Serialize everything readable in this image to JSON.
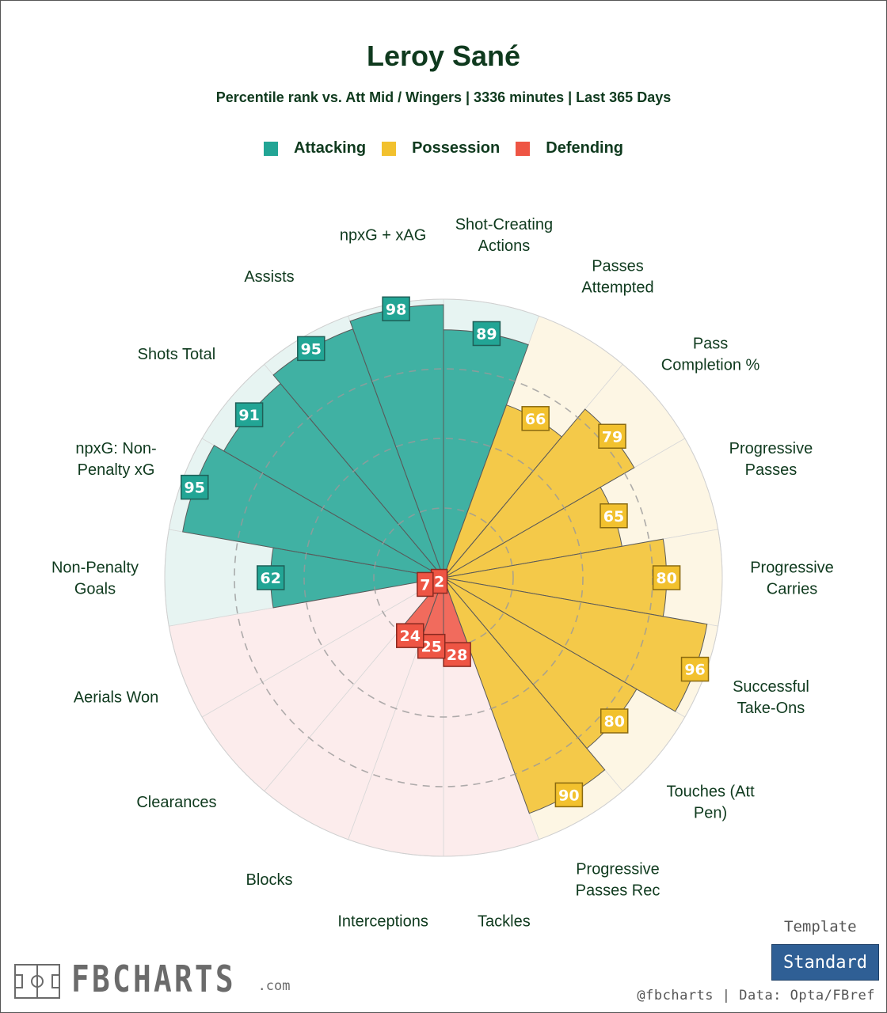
{
  "header": {
    "title": "Leroy Sané",
    "subtitle": "Percentile rank vs. Att Mid / Wingers | 3336 minutes | Last 365 Days"
  },
  "legend": [
    {
      "label": "Attacking",
      "color": "#22a595"
    },
    {
      "label": "Possession",
      "color": "#f2c12e"
    },
    {
      "label": "Defending",
      "color": "#ee5544"
    }
  ],
  "chart_data": {
    "type": "polar-bar",
    "title": "Leroy Sané",
    "subtitle": "Percentile rank vs. Att Mid / Wingers | 3336 minutes | Last 365 Days",
    "rlim": [
      0,
      100
    ],
    "categories": [
      {
        "label": "Shot-Creating\nActions",
        "value": 89,
        "group": "Attacking"
      },
      {
        "label": "Passes\nAttempted",
        "value": 66,
        "group": "Possession"
      },
      {
        "label": "Pass\nCompletion %",
        "value": 79,
        "group": "Possession"
      },
      {
        "label": "Progressive\nPasses",
        "value": 65,
        "group": "Possession"
      },
      {
        "label": "Progressive\nCarries",
        "value": 80,
        "group": "Possession"
      },
      {
        "label": "Successful\nTake-Ons",
        "value": 96,
        "group": "Possession"
      },
      {
        "label": "Touches (Att\nPen)",
        "value": 80,
        "group": "Possession"
      },
      {
        "label": "Progressive\nPasses Rec",
        "value": 90,
        "group": "Possession"
      },
      {
        "label": "Tackles",
        "value": 28,
        "group": "Defending"
      },
      {
        "label": "Interceptions",
        "value": 25,
        "group": "Defending"
      },
      {
        "label": "Blocks",
        "value": 24,
        "group": "Defending"
      },
      {
        "label": "Clearances",
        "value": 2,
        "group": "Defending"
      },
      {
        "label": "Aerials Won",
        "value": 7,
        "group": "Defending"
      },
      {
        "label": "Non-Penalty\nGoals",
        "value": 62,
        "group": "Attacking"
      },
      {
        "label": "npxG: Non-\nPenalty xG",
        "value": 95,
        "group": "Attacking"
      },
      {
        "label": "Shots Total",
        "value": 91,
        "group": "Attacking"
      },
      {
        "label": "Assists",
        "value": 95,
        "group": "Attacking"
      },
      {
        "label": "npxG + xAG",
        "value": 98,
        "group": "Attacking"
      }
    ],
    "colors": {
      "Attacking": {
        "bar": "#22a595",
        "bg": "#e7f4f2",
        "box_border": "#1f5f57"
      },
      "Possession": {
        "bar": "#f2c12e",
        "bg": "#fdf6e4",
        "box_border": "#8a6a10"
      },
      "Defending": {
        "bar": "#ee5544",
        "bg": "#fcecec",
        "box_border": "#8a2a20"
      }
    },
    "grid": "dashed rings at 25, 50, 75",
    "legend_position": "top"
  },
  "footer": {
    "template_label": "Template",
    "template_button": "Standard",
    "credit": "@fbcharts | Data: Opta/FBref",
    "logo_text": "FBCHARTS",
    "logo_domain": ".com"
  }
}
